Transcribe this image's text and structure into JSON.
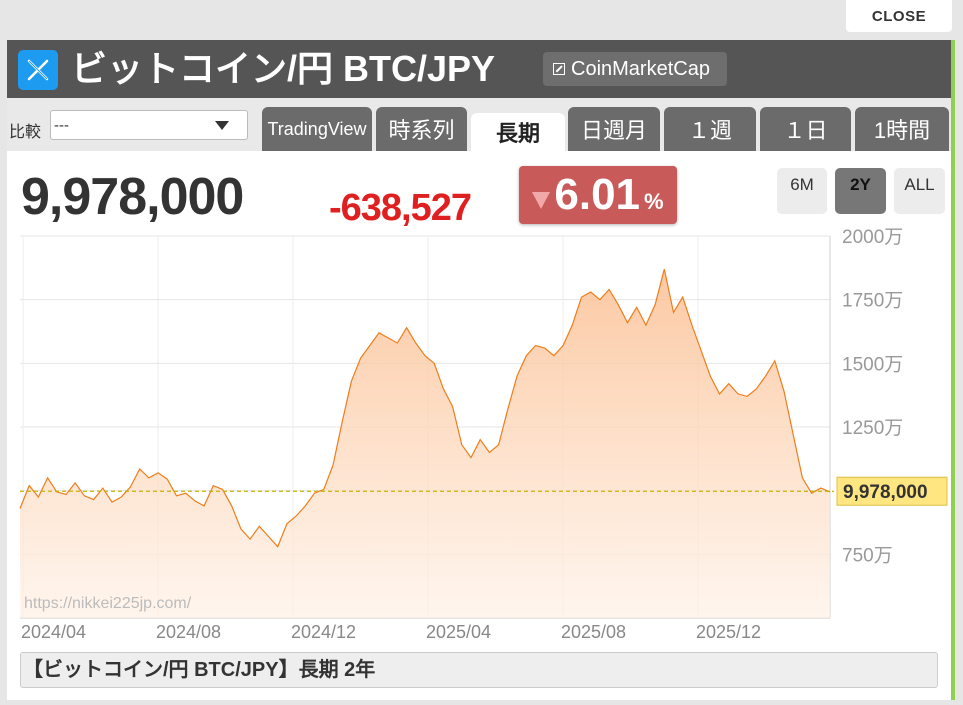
{
  "close_label": "CLOSE",
  "header": {
    "title": "ビットコイン/円 BTC/JPY",
    "cmc_label": "CoinMarketCap"
  },
  "toolbar": {
    "compare_label": "比較",
    "compare_value": "---",
    "tabs": [
      {
        "label": "TradingView"
      },
      {
        "label": "時系列"
      },
      {
        "label": "長期",
        "active": true
      },
      {
        "label": "日週月"
      },
      {
        "label": "１週"
      },
      {
        "label": "１日"
      },
      {
        "label": "1時間"
      }
    ]
  },
  "quote": {
    "price": "9,978,000",
    "change": "-638,527",
    "change_pct": "6.01",
    "pct_unit": "%"
  },
  "ranges": [
    {
      "label": "6M"
    },
    {
      "label": "2Y",
      "active": true
    },
    {
      "label": "ALL"
    }
  ],
  "chart_data": {
    "type": "area",
    "y_ticks": [
      "2000万",
      "1750万",
      "1500万",
      "1250万",
      "750万"
    ],
    "y_tick_values": [
      2000,
      1750,
      1500,
      1250,
      750
    ],
    "ylim": [
      500,
      2000
    ],
    "x_ticks": [
      "2024/04",
      "2024/08",
      "2024/12",
      "2025/04",
      "2025/08",
      "2025/12"
    ],
    "current_label": "9,978,000",
    "current_value": 997.8,
    "watermark": "https://nikkei225jp.com/",
    "series": [
      {
        "values": [
          930,
          1020,
          975,
          1050,
          995,
          985,
          1030,
          980,
          965,
          1010,
          955,
          975,
          1015,
          1085,
          1050,
          1070,
          1045,
          980,
          990,
          960,
          940,
          1020,
          1005,
          940,
          850,
          810,
          860,
          820,
          780,
          870,
          900,
          940,
          990,
          1005,
          1100,
          1270,
          1430,
          1520,
          1570,
          1620,
          1600,
          1580,
          1640,
          1580,
          1530,
          1500,
          1400,
          1330,
          1180,
          1130,
          1200,
          1150,
          1180,
          1320,
          1450,
          1530,
          1570,
          1560,
          1530,
          1570,
          1650,
          1760,
          1780,
          1750,
          1790,
          1730,
          1660,
          1720,
          1650,
          1730,
          1870,
          1700,
          1760,
          1650,
          1550,
          1450,
          1380,
          1420,
          1380,
          1370,
          1400,
          1450,
          1510,
          1390,
          1220,
          1050,
          990,
          1010,
          995
        ]
      }
    ],
    "colors": {
      "line": "#ee7d1c",
      "fill_top": "#fbbf92",
      "fill_bottom": "#fff1e6",
      "current_line": "#c8b400",
      "current_bg": "#ffe680"
    }
  },
  "caption": "【ビットコイン/円 BTC/JPY】長期 2年"
}
